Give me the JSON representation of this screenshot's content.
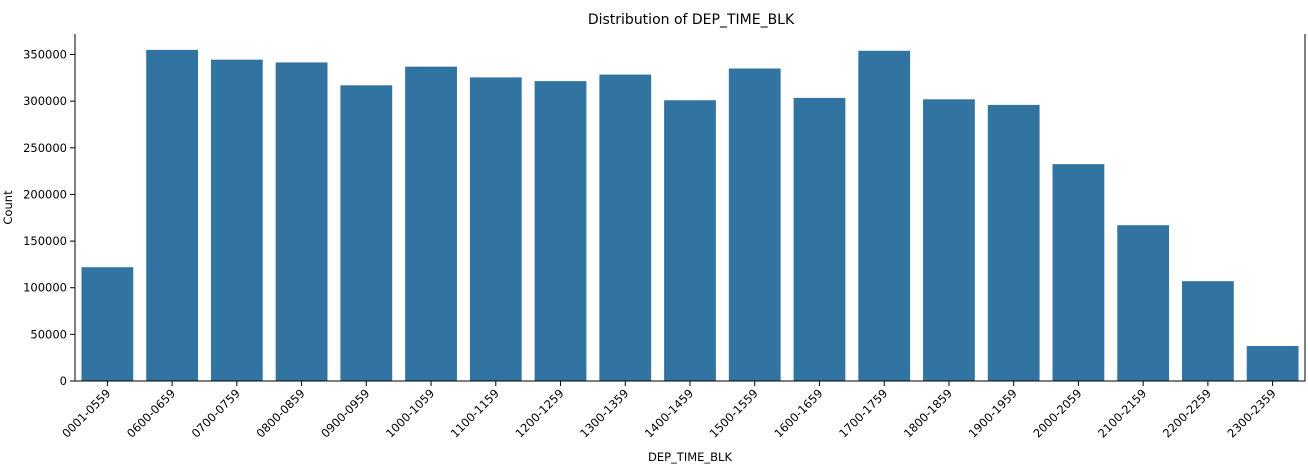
{
  "chart_data": {
    "type": "bar",
    "title": "Distribution of DEP_TIME_BLK",
    "xlabel": "DEP_TIME_BLK",
    "ylabel": "Count",
    "categories": [
      "0001-0559",
      "0600-0659",
      "0700-0759",
      "0800-0859",
      "0900-0959",
      "1000-1059",
      "1100-1159",
      "1200-1259",
      "1300-1359",
      "1400-1459",
      "1500-1559",
      "1600-1659",
      "1700-1759",
      "1800-1859",
      "1900-1959",
      "2000-2059",
      "2100-2159",
      "2200-2259",
      "2300-2359"
    ],
    "values": [
      122000,
      355000,
      344500,
      341500,
      317000,
      337000,
      325500,
      321500,
      328500,
      301000,
      335000,
      303500,
      354000,
      302000,
      296000,
      232500,
      167000,
      107000,
      37500
    ],
    "ylim": [
      0,
      372000
    ],
    "yticks": [
      0,
      50000,
      100000,
      150000,
      200000,
      250000,
      300000,
      350000
    ],
    "grid": false,
    "colors": {
      "bar": "#3274a1"
    }
  }
}
